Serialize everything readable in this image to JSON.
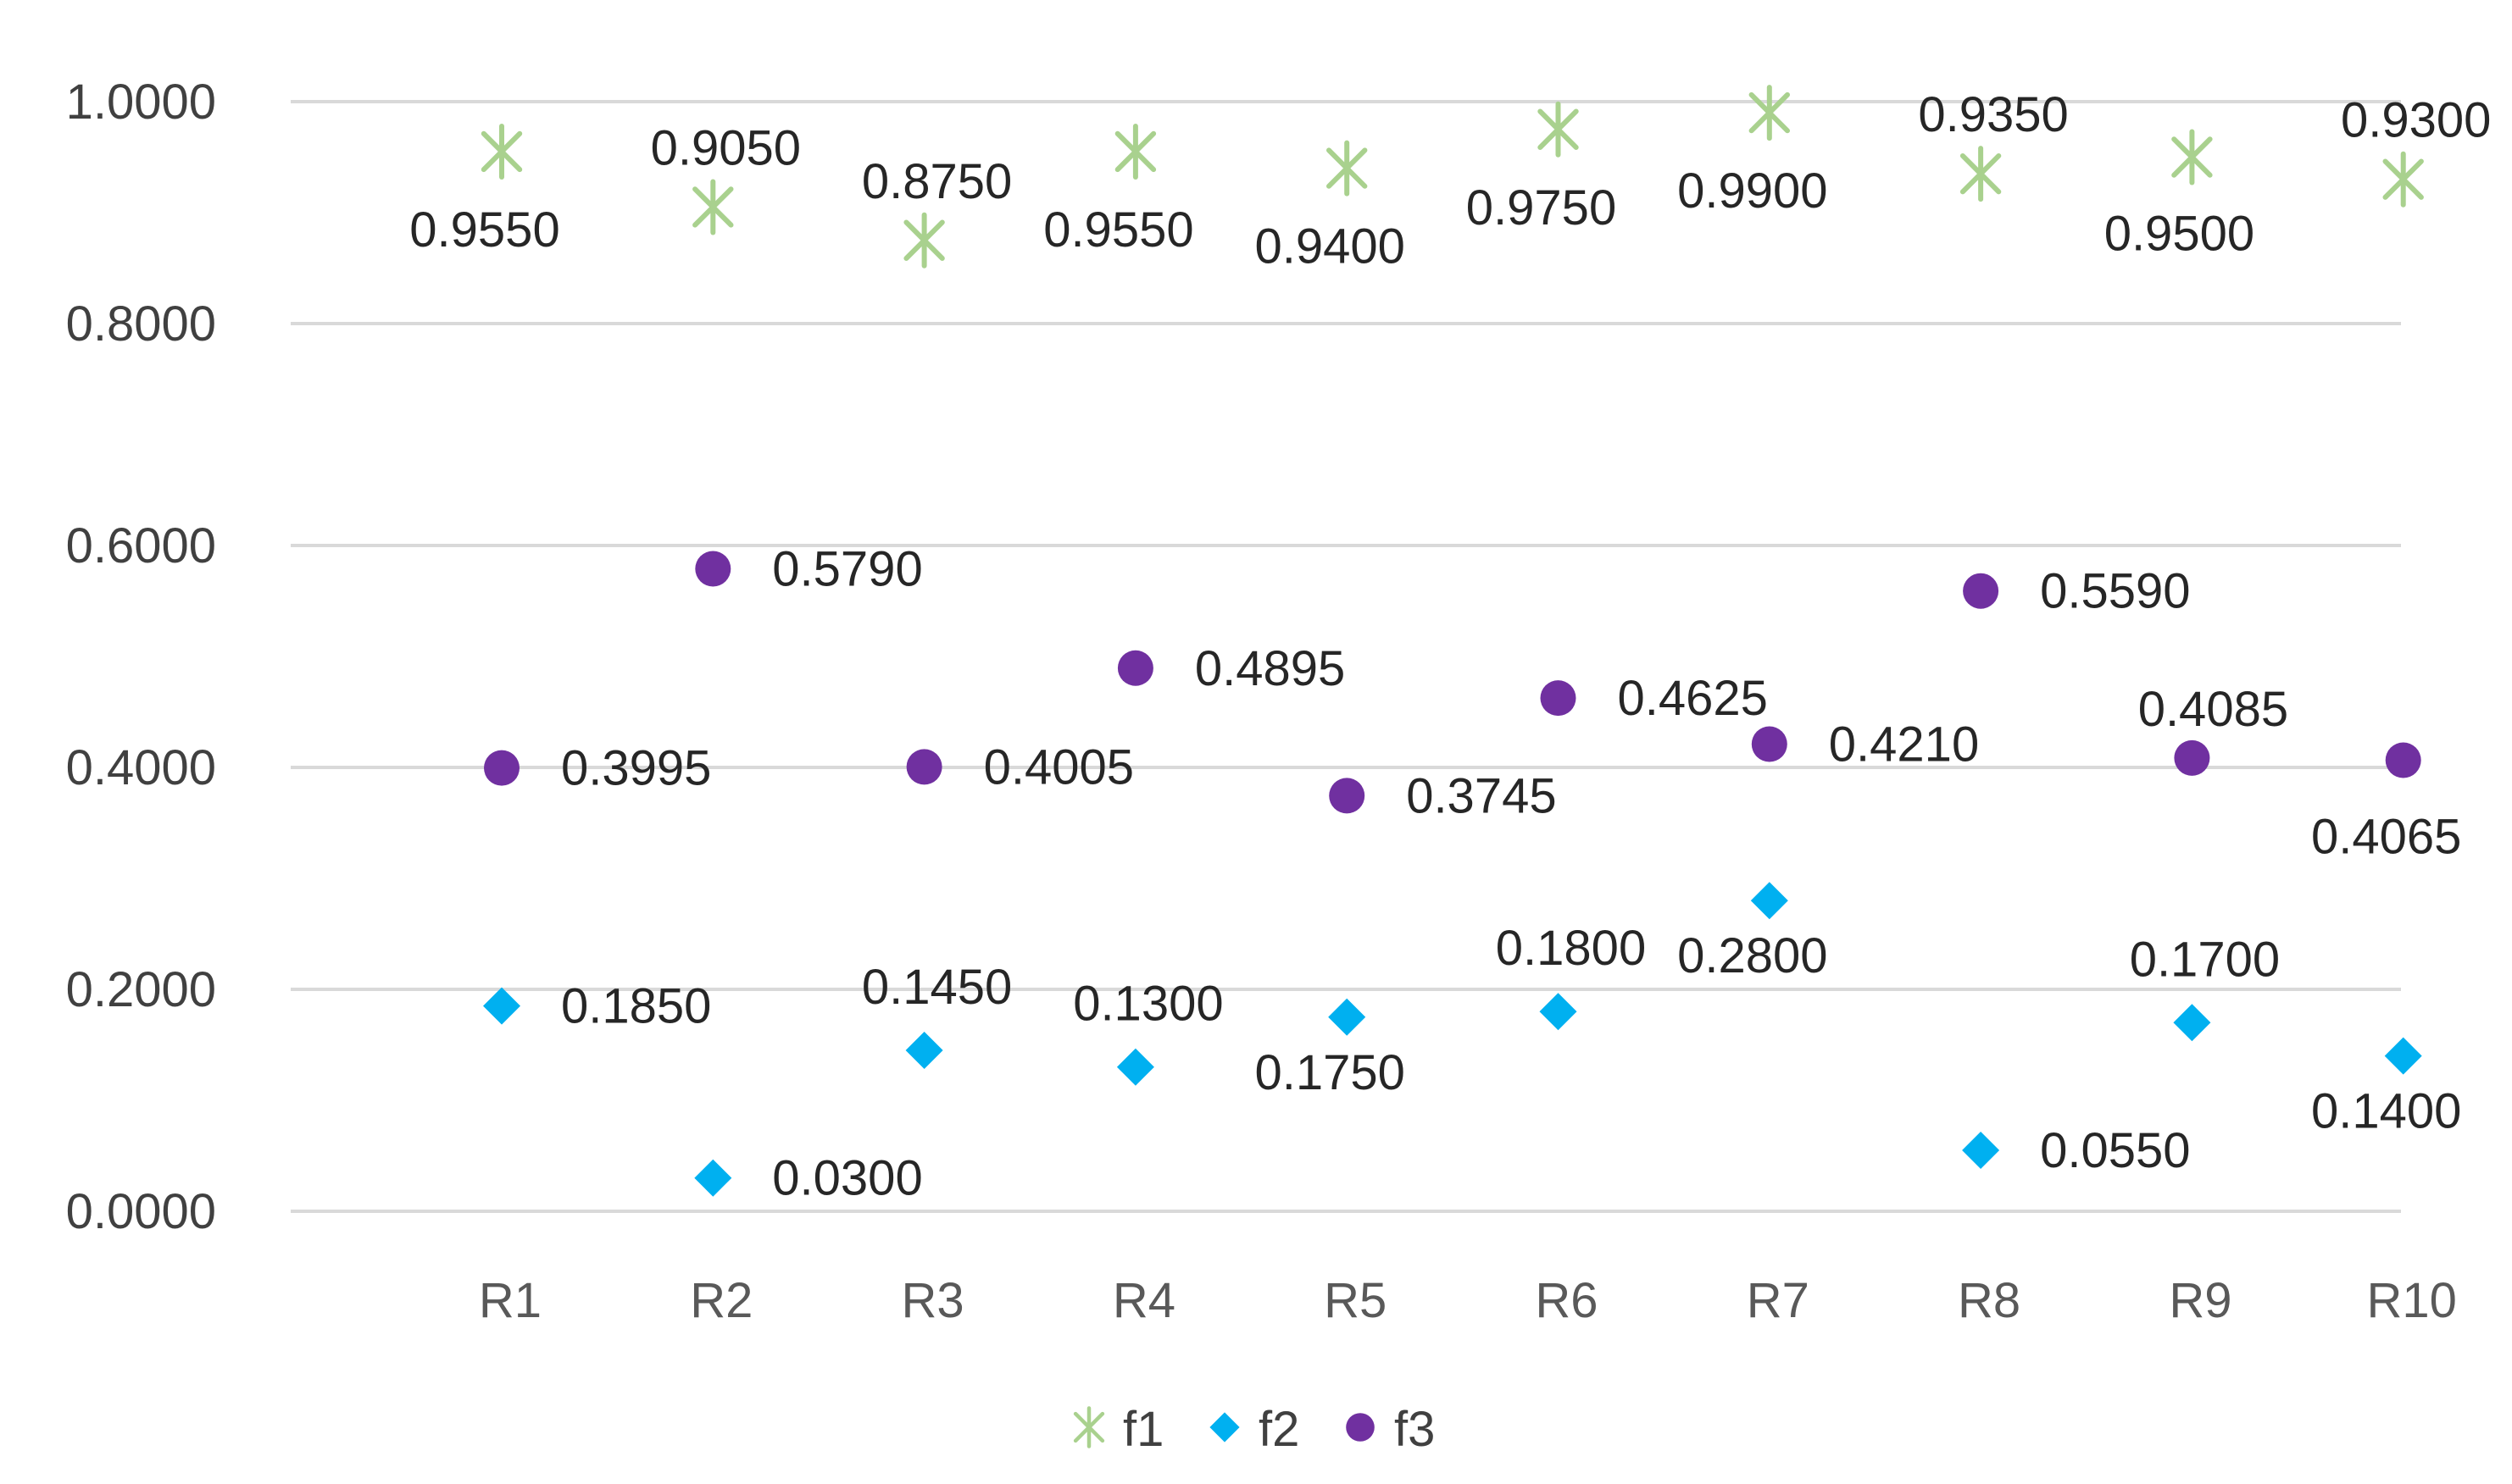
{
  "chart_data": {
    "type": "scatter",
    "title": "",
    "xlabel": "",
    "ylabel": "",
    "categories": [
      "R1",
      "R2",
      "R3",
      "R4",
      "R5",
      "R6",
      "R7",
      "R8",
      "R9",
      "R10"
    ],
    "ylim": [
      0,
      1
    ],
    "yticks": [
      "0.0000",
      "0.2000",
      "0.4000",
      "0.6000",
      "0.8000",
      "1.0000"
    ],
    "ytick_values": [
      0,
      0.2,
      0.4,
      0.6,
      0.8,
      1.0
    ],
    "grid": true,
    "legend_position": "bottom",
    "series": [
      {
        "name": "f1",
        "marker": "star",
        "color": "#a9d18e",
        "values": [
          0.955,
          0.905,
          0.875,
          0.955,
          0.94,
          0.975,
          0.99,
          0.935,
          0.95,
          0.93
        ],
        "labels": [
          "0.9550",
          "0.9050",
          "0.8750",
          "0.9550",
          "0.9400",
          "0.9750",
          "0.9900",
          "0.9350",
          "0.9500",
          "0.9300"
        ],
        "label_side": [
          "below",
          "above",
          "above",
          "below",
          "below",
          "below",
          "below",
          "above",
          "below",
          "above"
        ]
      },
      {
        "name": "f2",
        "marker": "diamond",
        "color": "#00b0f0",
        "values": [
          0.185,
          0.03,
          0.145,
          0.13,
          0.175,
          0.18,
          0.28,
          0.055,
          0.17,
          0.14
        ],
        "labels": [
          "0.1850",
          "0.0300",
          "0.1450",
          "0.1300",
          "0.1750",
          "0.1800",
          "0.2800",
          "0.0550",
          "0.1700",
          "0.1400"
        ],
        "label_side": [
          "right",
          "right",
          "above",
          "above",
          "below",
          "above",
          "below",
          "right",
          "above",
          "below"
        ]
      },
      {
        "name": "f3",
        "marker": "circle",
        "color": "#7030a0",
        "values": [
          0.3995,
          0.579,
          0.4005,
          0.4895,
          0.3745,
          0.4625,
          0.421,
          0.559,
          0.4085,
          0.4065
        ],
        "labels": [
          "0.3995",
          "0.5790",
          "0.4005",
          "0.4895",
          "0.3745",
          "0.4625",
          "0.4210",
          "0.5590",
          "0.4085",
          "0.4065"
        ],
        "label_side": [
          "right",
          "right",
          "right",
          "right",
          "right",
          "right",
          "right",
          "right",
          "above",
          "below"
        ]
      }
    ]
  }
}
